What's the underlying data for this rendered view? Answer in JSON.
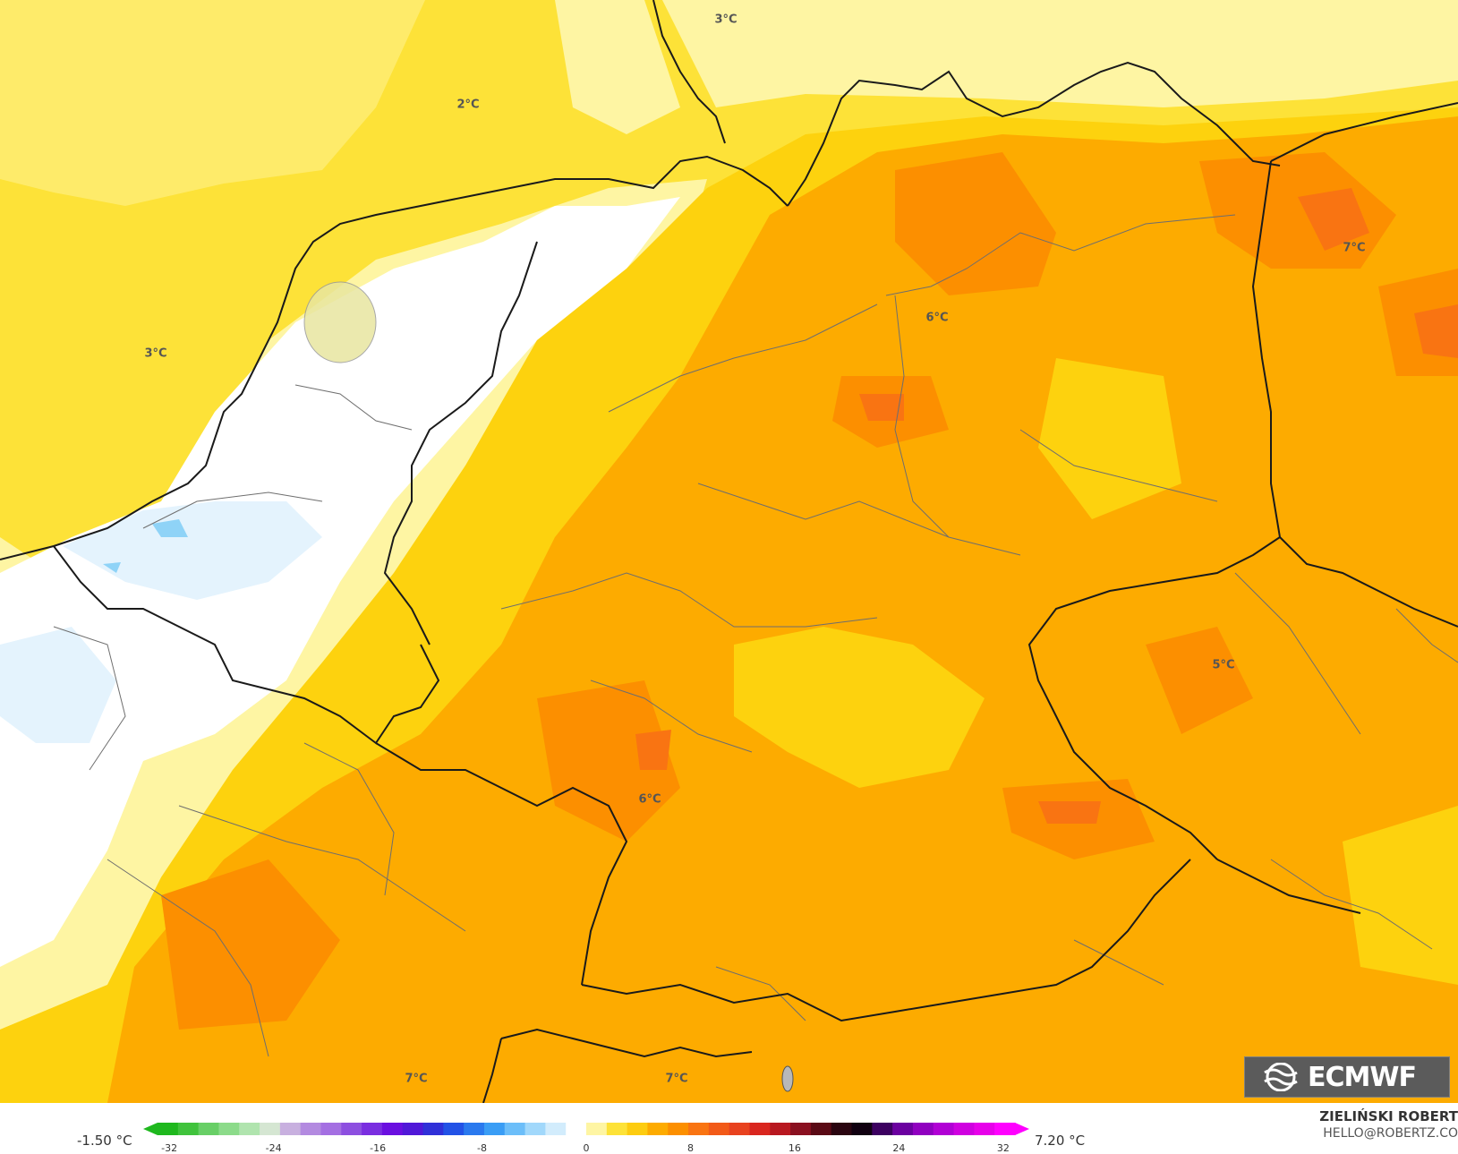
{
  "map": {
    "iso_labels": [
      "2°C",
      "3°C",
      "3°C",
      "6°C",
      "7°C",
      "5°C",
      "6°C",
      "7°C",
      "7°C"
    ],
    "colors": {
      "sea_yellow": "#fde238",
      "pale_yellow": "#fef5a3",
      "light_yellow": "#feeb6a",
      "gold": "#fdd20e",
      "orange": "#fdab00",
      "dark_orange": "#fc8f00",
      "deep_orange": "#f97412",
      "white": "#ffffff",
      "pale_blue": "#e4f3fd",
      "blue": "#8fd3f7",
      "border": "#1a1a1a",
      "region": "#6e6e6e"
    }
  },
  "logo": {
    "text": "ECMWF",
    "icon": "ecmwf-logo-icon"
  },
  "legend": {
    "min_label": "-1.50 °C",
    "max_label": "7.20 °C",
    "ticks": [
      "-32",
      "-24",
      "-16",
      "-8",
      "0",
      "8",
      "16",
      "24",
      "32"
    ],
    "tick_values": [
      -32,
      -24,
      -16,
      -8,
      0,
      8,
      16,
      24,
      32
    ],
    "range": [
      -34,
      34
    ],
    "colors": [
      "#1fb81e",
      "#40c33c",
      "#68cf66",
      "#8cdb8a",
      "#b0e4ae",
      "#d5e6d2",
      "#c8b0df",
      "#b38ae0",
      "#a46fe2",
      "#8d4fe0",
      "#7a2ee0",
      "#6a0fe0",
      "#5018d8",
      "#3030d8",
      "#2252e6",
      "#2a79ee",
      "#3a9df5",
      "#6cbef9",
      "#a1d8fb",
      "#d2ecfc",
      "#ffffff",
      "#fef5a3",
      "#fde238",
      "#fdcc10",
      "#fdab00",
      "#fc8f00",
      "#f97412",
      "#f25a18",
      "#e8421f",
      "#d9261f",
      "#b81820",
      "#8a1020",
      "#5a0a15",
      "#2a0510",
      "#100010",
      "#3c0060",
      "#6b00a0",
      "#9000c0",
      "#b100d5",
      "#cf00e0",
      "#e700ea",
      "#ff00ff"
    ]
  },
  "author": {
    "name": "ZIELIŃSKI ROBERT",
    "email": "HELLO@ROBERTZ.CO"
  }
}
